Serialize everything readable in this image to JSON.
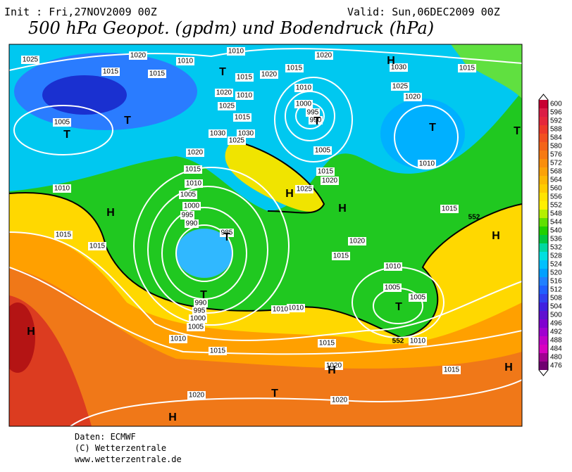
{
  "header": {
    "init": "Init : Fri,27NOV2009 00Z",
    "valid": "Valid: Sun,06DEC2009 00Z",
    "title": "500 hPa Geopot. (gpdm) und Bodendruck (hPa)"
  },
  "centers": [
    "H",
    "H",
    "H",
    "H",
    "H",
    "H",
    "H",
    "H",
    "H",
    "T",
    "T",
    "T",
    "T",
    "T",
    "T",
    "T",
    "T",
    "T",
    "T"
  ],
  "isobar_labels": [
    1020,
    1025,
    1015,
    1015,
    1010,
    1010,
    1020,
    1030,
    1015,
    1020,
    1015,
    1015,
    1010,
    1020,
    1010,
    1025,
    1000,
    995,
    990,
    1015,
    1030,
    1030,
    1025,
    1005,
    1025,
    1020,
    1010,
    1005,
    1020,
    1015,
    1010,
    1005,
    1000,
    995,
    990,
    985,
    1015,
    1020,
    1025,
    1010,
    1015,
    1015,
    1020,
    1015,
    1015,
    1010,
    1005,
    1005,
    990,
    995,
    1000,
    1005,
    1010,
    1010,
    1015,
    1015,
    1010,
    1020,
    1015,
    1020,
    1020,
    1010
  ],
  "contour_labels": [
    552,
    552
  ],
  "colorbar": {
    "levels": [
      600,
      596,
      592,
      588,
      584,
      580,
      576,
      572,
      568,
      564,
      560,
      556,
      552,
      548,
      544,
      540,
      536,
      532,
      528,
      524,
      520,
      516,
      512,
      508,
      504,
      500,
      496,
      492,
      488,
      484,
      480,
      476
    ],
    "colors": [
      "#c80032",
      "#dc1e46",
      "#e6283c",
      "#ee3a2a",
      "#f25020",
      "#f46418",
      "#f77a12",
      "#f98e0c",
      "#fba208",
      "#fdb804",
      "#ffcc00",
      "#ffe400",
      "#fff000",
      "#b4f000",
      "#60e000",
      "#20d000",
      "#00c840",
      "#00d8a0",
      "#00e0e0",
      "#00c0ff",
      "#00a0ff",
      "#2080ff",
      "#2060ff",
      "#3040f0",
      "#4020e0",
      "#6010d0",
      "#8000d0",
      "#a000d0",
      "#c000c8",
      "#d800c0",
      "#a00090",
      "#700070"
    ]
  },
  "footer": {
    "source": "Daten: ECMWF",
    "copyright": "(C) Wetterzentrale",
    "url": "www.wetterzentrale.de"
  }
}
